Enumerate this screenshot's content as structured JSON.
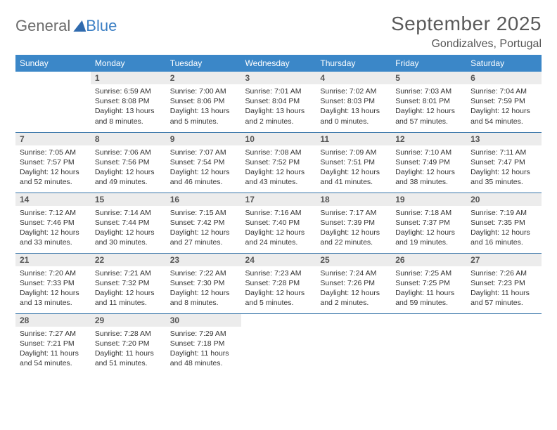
{
  "brand": {
    "part1": "General",
    "part2": "Blue"
  },
  "title": "September 2025",
  "location": "Gondizalves, Portugal",
  "colors": {
    "header_bg": "#3b87c8",
    "header_text": "#ffffff",
    "daynum_bg": "#ececec",
    "row_divider": "#3674a8",
    "title_color": "#5a5a5a",
    "logo_gray": "#6c6c6c",
    "logo_blue": "#3b7fc4"
  },
  "typography": {
    "title_fontsize": 28,
    "location_fontsize": 16,
    "weekday_fontsize": 12,
    "daynum_fontsize": 12,
    "cell_fontsize": 10.5
  },
  "weekdays": [
    "Sunday",
    "Monday",
    "Tuesday",
    "Wednesday",
    "Thursday",
    "Friday",
    "Saturday"
  ],
  "weeks": [
    [
      null,
      {
        "n": "1",
        "sr": "6:59 AM",
        "ss": "8:08 PM",
        "dl": "13 hours and 8 minutes."
      },
      {
        "n": "2",
        "sr": "7:00 AM",
        "ss": "8:06 PM",
        "dl": "13 hours and 5 minutes."
      },
      {
        "n": "3",
        "sr": "7:01 AM",
        "ss": "8:04 PM",
        "dl": "13 hours and 2 minutes."
      },
      {
        "n": "4",
        "sr": "7:02 AM",
        "ss": "8:03 PM",
        "dl": "13 hours and 0 minutes."
      },
      {
        "n": "5",
        "sr": "7:03 AM",
        "ss": "8:01 PM",
        "dl": "12 hours and 57 minutes."
      },
      {
        "n": "6",
        "sr": "7:04 AM",
        "ss": "7:59 PM",
        "dl": "12 hours and 54 minutes."
      }
    ],
    [
      {
        "n": "7",
        "sr": "7:05 AM",
        "ss": "7:57 PM",
        "dl": "12 hours and 52 minutes."
      },
      {
        "n": "8",
        "sr": "7:06 AM",
        "ss": "7:56 PM",
        "dl": "12 hours and 49 minutes."
      },
      {
        "n": "9",
        "sr": "7:07 AM",
        "ss": "7:54 PM",
        "dl": "12 hours and 46 minutes."
      },
      {
        "n": "10",
        "sr": "7:08 AM",
        "ss": "7:52 PM",
        "dl": "12 hours and 43 minutes."
      },
      {
        "n": "11",
        "sr": "7:09 AM",
        "ss": "7:51 PM",
        "dl": "12 hours and 41 minutes."
      },
      {
        "n": "12",
        "sr": "7:10 AM",
        "ss": "7:49 PM",
        "dl": "12 hours and 38 minutes."
      },
      {
        "n": "13",
        "sr": "7:11 AM",
        "ss": "7:47 PM",
        "dl": "12 hours and 35 minutes."
      }
    ],
    [
      {
        "n": "14",
        "sr": "7:12 AM",
        "ss": "7:46 PM",
        "dl": "12 hours and 33 minutes."
      },
      {
        "n": "15",
        "sr": "7:14 AM",
        "ss": "7:44 PM",
        "dl": "12 hours and 30 minutes."
      },
      {
        "n": "16",
        "sr": "7:15 AM",
        "ss": "7:42 PM",
        "dl": "12 hours and 27 minutes."
      },
      {
        "n": "17",
        "sr": "7:16 AM",
        "ss": "7:40 PM",
        "dl": "12 hours and 24 minutes."
      },
      {
        "n": "18",
        "sr": "7:17 AM",
        "ss": "7:39 PM",
        "dl": "12 hours and 22 minutes."
      },
      {
        "n": "19",
        "sr": "7:18 AM",
        "ss": "7:37 PM",
        "dl": "12 hours and 19 minutes."
      },
      {
        "n": "20",
        "sr": "7:19 AM",
        "ss": "7:35 PM",
        "dl": "12 hours and 16 minutes."
      }
    ],
    [
      {
        "n": "21",
        "sr": "7:20 AM",
        "ss": "7:33 PM",
        "dl": "12 hours and 13 minutes."
      },
      {
        "n": "22",
        "sr": "7:21 AM",
        "ss": "7:32 PM",
        "dl": "12 hours and 11 minutes."
      },
      {
        "n": "23",
        "sr": "7:22 AM",
        "ss": "7:30 PM",
        "dl": "12 hours and 8 minutes."
      },
      {
        "n": "24",
        "sr": "7:23 AM",
        "ss": "7:28 PM",
        "dl": "12 hours and 5 minutes."
      },
      {
        "n": "25",
        "sr": "7:24 AM",
        "ss": "7:26 PM",
        "dl": "12 hours and 2 minutes."
      },
      {
        "n": "26",
        "sr": "7:25 AM",
        "ss": "7:25 PM",
        "dl": "11 hours and 59 minutes."
      },
      {
        "n": "27",
        "sr": "7:26 AM",
        "ss": "7:23 PM",
        "dl": "11 hours and 57 minutes."
      }
    ],
    [
      {
        "n": "28",
        "sr": "7:27 AM",
        "ss": "7:21 PM",
        "dl": "11 hours and 54 minutes."
      },
      {
        "n": "29",
        "sr": "7:28 AM",
        "ss": "7:20 PM",
        "dl": "11 hours and 51 minutes."
      },
      {
        "n": "30",
        "sr": "7:29 AM",
        "ss": "7:18 PM",
        "dl": "11 hours and 48 minutes."
      },
      null,
      null,
      null,
      null
    ]
  ],
  "labels": {
    "sunrise": "Sunrise:",
    "sunset": "Sunset:",
    "daylight": "Daylight:"
  }
}
